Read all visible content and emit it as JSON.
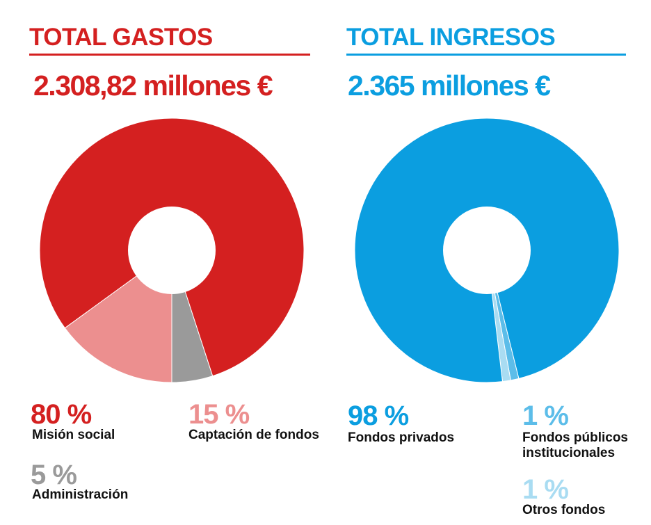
{
  "gastos": {
    "title": "TOTAL GASTOS",
    "total": "2.308,82 millones €",
    "color": "#d42020",
    "items": [
      {
        "pct": "80 %",
        "label": "Misión social",
        "color": "#d42020"
      },
      {
        "pct": "15 %",
        "label": "Captación de fondos",
        "color": "#ec8f8f"
      },
      {
        "pct": "5 %",
        "label": "Administración",
        "color": "#9a9a9a"
      }
    ]
  },
  "ingresos": {
    "title": "TOTAL INGRESOS",
    "total": "2.365 millones €",
    "color": "#0b9ee0",
    "items": [
      {
        "pct": "98 %",
        "label": "Fondos privados",
        "color": "#0b9ee0"
      },
      {
        "pct": "1 %",
        "label": "Fondos públicos institucionales",
        "color": "#5cbde9"
      },
      {
        "pct": "1 %",
        "label": "Otros fondos",
        "color": "#a9dcf2"
      }
    ]
  },
  "chart_data": [
    {
      "type": "pie",
      "title": "TOTAL GASTOS",
      "subtitle": "2.308,82 millones €",
      "categories": [
        "Misión social",
        "Captación de fondos",
        "Administración"
      ],
      "values": [
        80,
        15,
        5
      ],
      "colors": [
        "#d42020",
        "#ec8f8f",
        "#9a9a9a"
      ]
    },
    {
      "type": "pie",
      "title": "TOTAL INGRESOS",
      "subtitle": "2.365 millones €",
      "categories": [
        "Fondos privados",
        "Fondos públicos institucionales",
        "Otros fondos"
      ],
      "values": [
        98,
        1,
        1
      ],
      "colors": [
        "#0b9ee0",
        "#5cbde9",
        "#a9dcf2"
      ]
    }
  ]
}
